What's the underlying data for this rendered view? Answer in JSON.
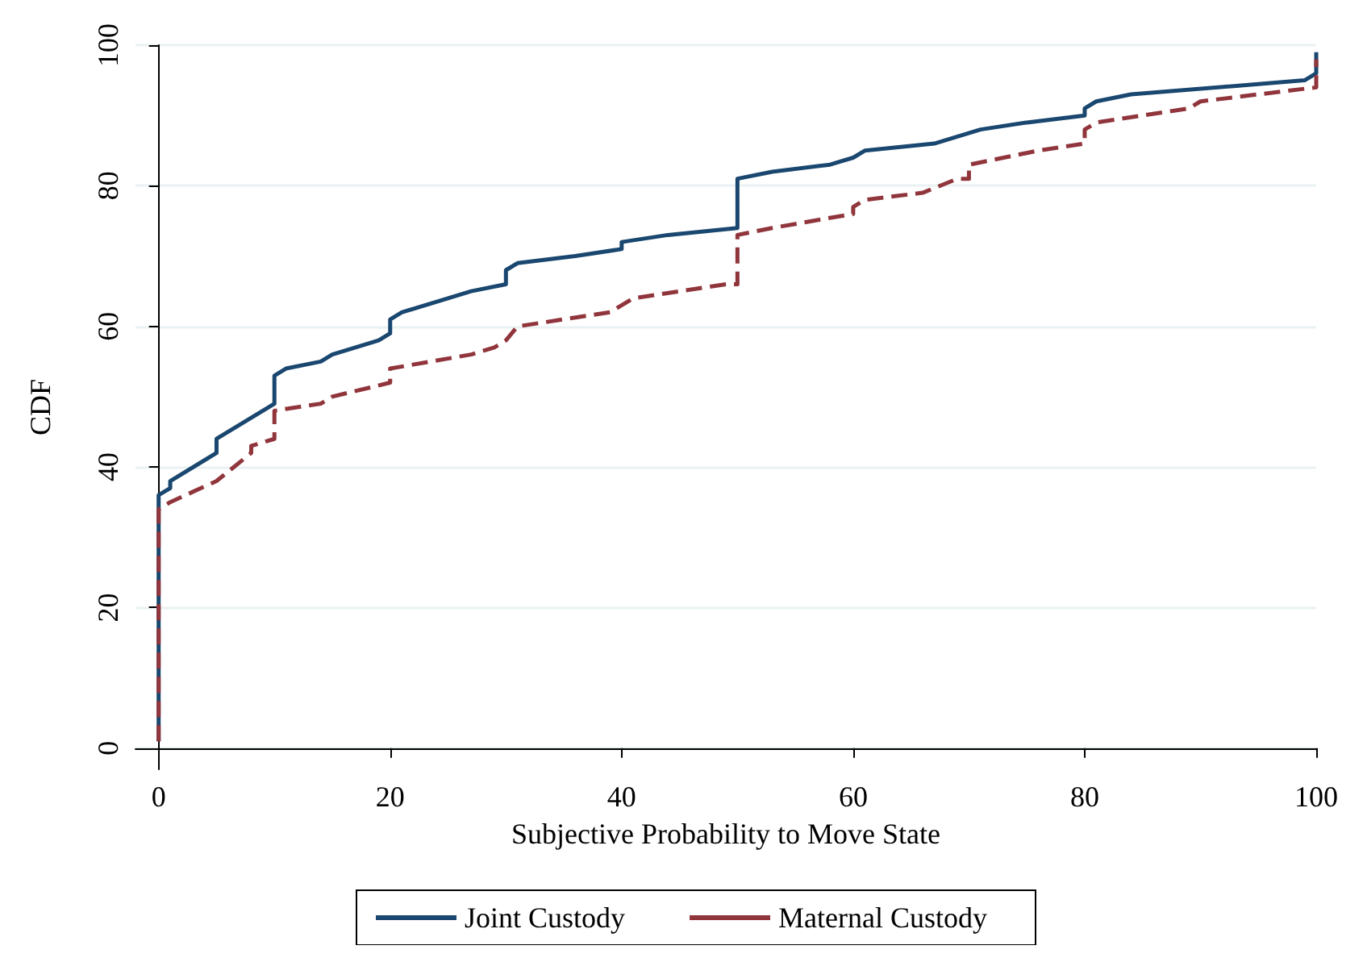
{
  "chart_data": {
    "type": "line",
    "xlabel": "Subjective Probability to Move State",
    "ylabel": "CDF",
    "xlim": [
      -2,
      100
    ],
    "ylim": [
      -3,
      100
    ],
    "xticks": [
      0,
      20,
      40,
      60,
      80,
      100
    ],
    "yticks": [
      0,
      20,
      40,
      60,
      80,
      100
    ],
    "grid": "y",
    "legend": "bottom",
    "marker": "none",
    "series": [
      {
        "name": "Joint Custody",
        "color": "#1a476f",
        "line_style": "solid",
        "x": [
          0,
          0,
          1,
          1,
          5,
          5,
          10,
          10,
          11,
          14,
          15,
          19,
          20,
          20,
          21,
          27,
          30,
          30,
          31,
          36,
          40,
          40,
          44,
          50,
          50,
          53,
          58,
          60,
          61,
          67,
          69,
          71,
          75,
          80,
          80,
          81,
          84,
          99,
          100,
          100
        ],
        "values": [
          1,
          36,
          37,
          38,
          42,
          44,
          49,
          53,
          54,
          55,
          56,
          58,
          59,
          61,
          62,
          65,
          66,
          68,
          69,
          70,
          71,
          72,
          73,
          74,
          81,
          82,
          83,
          84,
          85,
          86,
          87,
          88,
          89,
          90,
          91,
          92,
          93,
          95,
          96,
          99
        ]
      },
      {
        "name": "Maternal Custody",
        "color": "#90353b",
        "line_style": "dashed",
        "x": [
          0,
          0,
          1,
          5,
          8,
          8,
          10,
          10,
          14,
          15,
          20,
          20,
          27,
          29,
          30,
          31,
          39,
          41,
          49,
          50,
          50,
          53,
          60,
          60,
          61,
          66,
          69,
          70,
          70,
          73,
          76,
          80,
          80,
          81,
          89,
          90,
          100,
          100
        ],
        "values": [
          1,
          34,
          35,
          38,
          42,
          43,
          44,
          48,
          49,
          50,
          52,
          54,
          56,
          57,
          58,
          60,
          62,
          64,
          66,
          66,
          73,
          74,
          76,
          77,
          78,
          79,
          81,
          81,
          83,
          84,
          85,
          86,
          88,
          89,
          91,
          92,
          94,
          98
        ]
      }
    ]
  }
}
